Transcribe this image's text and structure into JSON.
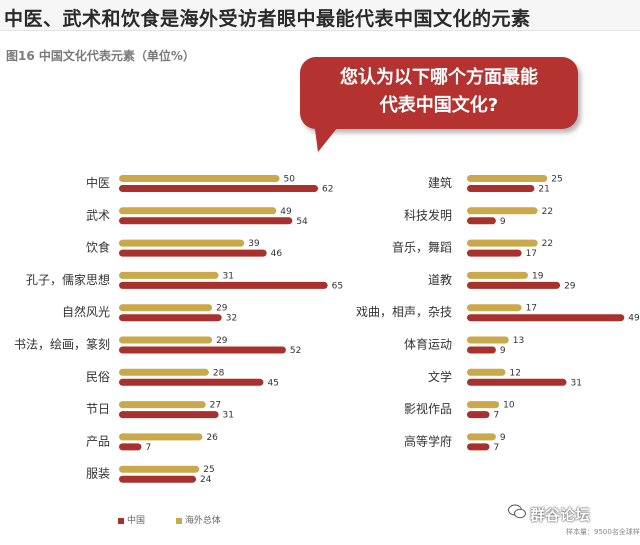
{
  "header": {
    "title": "中医、武术和饮食是海外受访者眼中最能代表中国文化的元素",
    "figure_label": "图16  中国文化代表元素（单位%）"
  },
  "bubble": {
    "line1": "您认为以下哪个方面最能",
    "line2": "代表中国文化?"
  },
  "legend": {
    "china": "中国",
    "overseas": "海外总体"
  },
  "colors": {
    "china": "#a8312e",
    "overseas": "#c9a94a",
    "bubble": "#b4322f"
  },
  "footer": {
    "watermark": "群谷论坛",
    "sample_note": "样本量：9500名全球样本"
  },
  "chart_data": {
    "type": "bar",
    "orientation": "horizontal",
    "title": "中国文化代表元素（单位%）",
    "series_names": [
      "中国",
      "海外总体"
    ],
    "left_panel": {
      "categories": [
        "中医",
        "武术",
        "饮食",
        "孔子，儒家思想",
        "自然风光",
        "书法，绘画，篆刻",
        "民俗",
        "节日",
        "产品",
        "服装"
      ],
      "overseas": [
        50,
        49,
        39,
        31,
        29,
        29,
        28,
        27,
        26,
        25
      ],
      "china": [
        62,
        54,
        46,
        65,
        32,
        52,
        45,
        31,
        7,
        24
      ]
    },
    "right_panel": {
      "categories": [
        "建筑",
        "科技发明",
        "音乐，舞蹈",
        "道教",
        "戏曲，相声，杂技",
        "体育运动",
        "文学",
        "影视作品",
        "高等学府"
      ],
      "overseas": [
        25,
        22,
        22,
        19,
        17,
        13,
        12,
        10,
        9
      ],
      "china": [
        21,
        9,
        17,
        29,
        49,
        9,
        31,
        7,
        7
      ]
    }
  }
}
